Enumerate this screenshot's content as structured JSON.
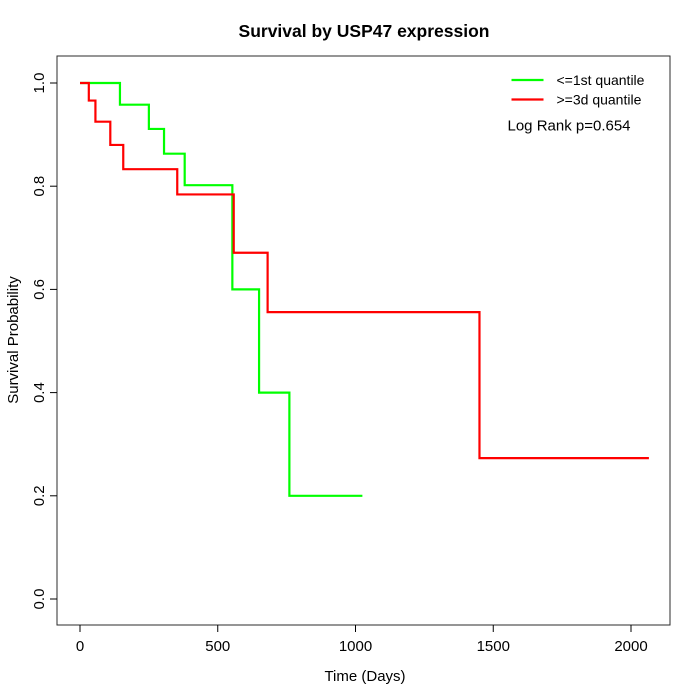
{
  "title": "Survival by USP47 expression",
  "x_axis": {
    "label": "Time (Days)",
    "tick_labels": [
      "0",
      "500",
      "1000",
      "1500",
      "2000"
    ],
    "tick_values": [
      0,
      500,
      1000,
      1500,
      2000
    ]
  },
  "y_axis": {
    "label": "Survival Probability",
    "tick_labels": [
      "0.0",
      "0.2",
      "0.4",
      "0.6",
      "0.8",
      "1.0"
    ],
    "tick_values": [
      0,
      0.2,
      0.4,
      0.6,
      0.8,
      1
    ]
  },
  "legend": {
    "entries": [
      {
        "label": "<=1st quantile",
        "color": "#00ff00"
      },
      {
        "label": ">=3d quantile",
        "color": "#ff0000"
      }
    ]
  },
  "annotation": {
    "log_rank": "Log Rank p=0.654"
  },
  "colors": {
    "group_low": "#00ff00",
    "group_high": "#ff0000",
    "text": "#000000",
    "background": "#ffffff"
  },
  "chart_data": {
    "type": "line",
    "subtype": "kaplan-meier-step",
    "title": "Survival by USP47 expression",
    "xlabel": "Time (Days)",
    "ylabel": "Survival Probability",
    "xlim": [
      0,
      2100
    ],
    "ylim": [
      0,
      1
    ],
    "x_ticks": [
      0,
      500,
      1000,
      1500,
      2000
    ],
    "y_ticks": [
      0,
      0.2,
      0.4,
      0.6,
      0.8,
      1.0
    ],
    "grid": false,
    "legend_position": "top-right",
    "annotations": [
      "Log Rank p=0.654"
    ],
    "series": [
      {
        "name": "<=1st quantile",
        "color": "#00ff00",
        "steps": [
          [
            0,
            1.0
          ],
          [
            145,
            0.958
          ],
          [
            250,
            0.911
          ],
          [
            305,
            0.863
          ],
          [
            380,
            0.802
          ],
          [
            553,
            0.6
          ],
          [
            650,
            0.4
          ],
          [
            760,
            0.2
          ]
        ],
        "end_time": 1025
      },
      {
        "name": ">=3d quantile",
        "color": "#ff0000",
        "steps": [
          [
            0,
            1.0
          ],
          [
            32,
            0.966
          ],
          [
            56,
            0.925
          ],
          [
            110,
            0.88
          ],
          [
            157,
            0.833
          ],
          [
            353,
            0.784
          ],
          [
            558,
            0.671
          ],
          [
            681,
            0.556
          ],
          [
            1450,
            0.273
          ]
        ],
        "end_time": 2065
      }
    ]
  }
}
